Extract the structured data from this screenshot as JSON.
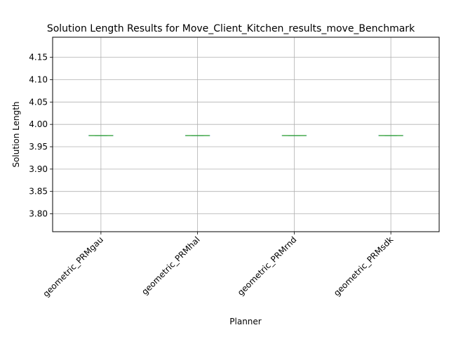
{
  "chart_data": {
    "type": "box",
    "title": "Solution Length Results for Move_Client_Kitchen_results_move_Benchmark",
    "xlabel": "Planner",
    "ylabel": "Solution Length",
    "categories": [
      "geometric_PRMgau",
      "geometric_PRMhal",
      "geometric_PRMrnd",
      "geometric_PRMsdk"
    ],
    "series": [
      {
        "values": [
          {
            "min": 3.975,
            "q1": 3.975,
            "median": 3.975,
            "q3": 3.975,
            "max": 3.975
          },
          {
            "min": 3.975,
            "q1": 3.975,
            "median": 3.975,
            "q3": 3.975,
            "max": 3.975
          },
          {
            "min": 3.975,
            "q1": 3.975,
            "median": 3.975,
            "q3": 3.975,
            "max": 3.975
          },
          {
            "min": 3.975,
            "q1": 3.975,
            "median": 3.975,
            "q3": 3.975,
            "max": 3.975
          }
        ]
      }
    ],
    "ylim": [
      3.76,
      4.195
    ],
    "yticks": [
      "3.80",
      "3.85",
      "3.90",
      "3.95",
      "4.00",
      "4.05",
      "4.10",
      "4.15"
    ],
    "grid": true,
    "colors": {
      "box": "#1f77b4",
      "median": "#2ca02c",
      "grid": "#b0b0b0",
      "axis": "#000000"
    }
  }
}
